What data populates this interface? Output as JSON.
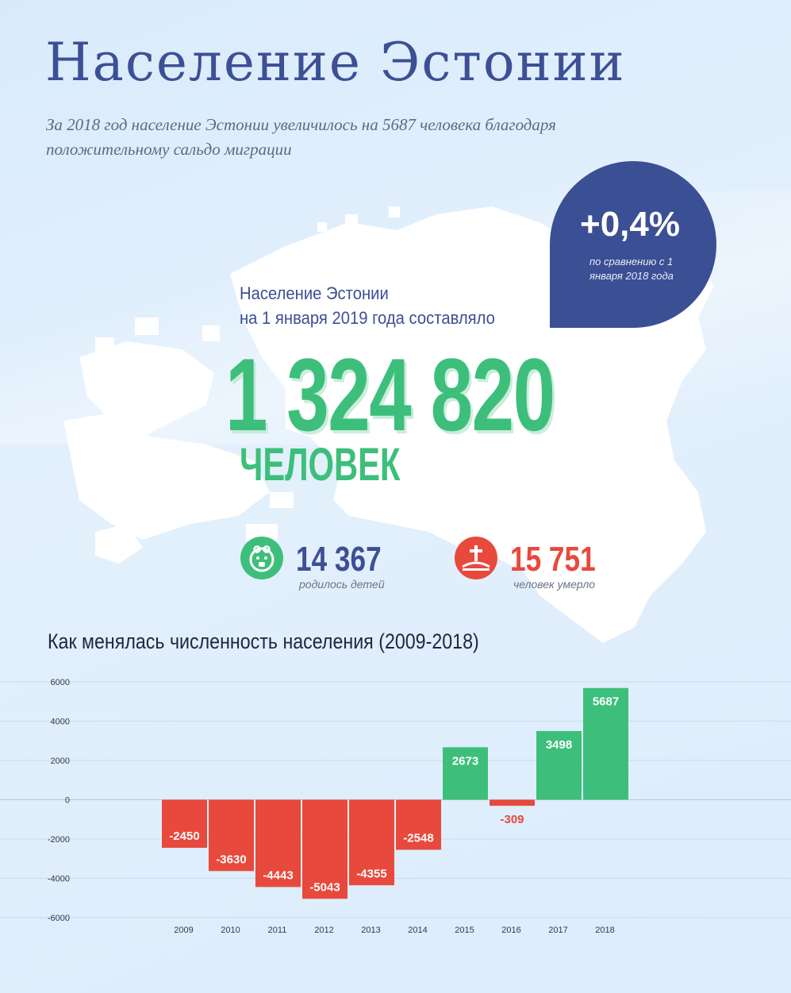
{
  "header": {
    "title": "Население Эстонии",
    "subtitle": "За 2018 год население Эстонии увеличилось на 5687 человека благодаря положительному сальдо миграции"
  },
  "badge": {
    "value": "+0,4%",
    "note": "по сравнению с 1 января 2018 года"
  },
  "main": {
    "lead_line1": "Население Эстонии",
    "lead_line2": "на 1 января 2019 года составляло",
    "population": "1 324 820",
    "unit": "ЧЕЛОВЕК"
  },
  "stats": {
    "births": {
      "value": "14 367",
      "label": "родилось детей",
      "icon": "baby-face-icon"
    },
    "deaths": {
      "value": "15 751",
      "label": "человек умерло",
      "icon": "grave-cross-icon"
    }
  },
  "chart_title": "Как менялась численность населения (2009-2018)",
  "colors": {
    "title": "#3d4f95",
    "green": "#3dbf7b",
    "red": "#e8493d",
    "navy": "#3b4f95",
    "background": "#dfedfb"
  },
  "chart_data": {
    "type": "bar",
    "title": "Как менялась численность населения (2009-2018)",
    "categories": [
      "2009",
      "2010",
      "2011",
      "2012",
      "2013",
      "2014",
      "2015",
      "2016",
      "2017",
      "2018"
    ],
    "values": [
      -2450,
      -3630,
      -4443,
      -5043,
      -4355,
      -2548,
      2673,
      -309,
      3498,
      5687
    ],
    "data_labels": [
      "-2450",
      "-3630",
      "-4443",
      "-5043",
      "-4355",
      "-2548",
      "2673",
      "-309",
      "3498",
      "5687"
    ],
    "yticks": [
      "6000",
      "4000",
      "2000",
      "0",
      "-2000",
      "-4000",
      "-6000"
    ],
    "ylim": [
      -6000,
      6000
    ],
    "grid": true,
    "positive_color": "#3dbf7b",
    "negative_color": "#e8493d"
  }
}
